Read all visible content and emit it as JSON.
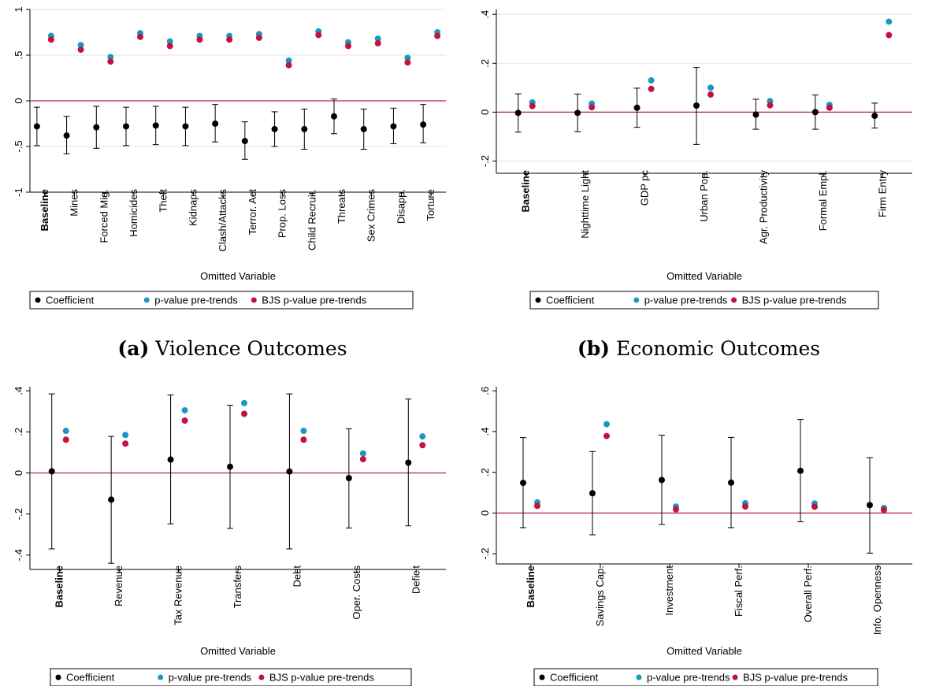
{
  "captions": [
    {
      "label": "(a)",
      "text": "Violence Outcomes"
    },
    {
      "label": "(b)",
      "text": "Economic Outcomes"
    }
  ],
  "colors": {
    "coefficient": "#000000",
    "pvalue": "#1a98c4",
    "bjs": "#c2123f",
    "zero_line": "#b3233f",
    "grid": "#e3e3e3"
  },
  "chart_data": [
    {
      "type": "scatter",
      "xlabel": "Omitted Variable",
      "ylabel": "",
      "ylim": [
        -1,
        1
      ],
      "yticks": [
        -1,
        -0.5,
        0,
        0.5,
        1
      ],
      "ytick_labels": [
        "-1",
        "-.5",
        "0",
        ".5",
        "1"
      ],
      "grid": true,
      "reference_line": 0,
      "categories": [
        "Baseline",
        "Mines",
        "Forced Mig.",
        "Homicides",
        "Theft",
        "Kidnaps",
        "Clash/Attacks",
        "Terror. Act",
        "Prop. Loss",
        "Child Recruit.",
        "Threats",
        "Sex Crimes",
        "Disapp.",
        "Torture"
      ],
      "bold_category": "Baseline",
      "coefficient": [
        -0.28,
        -0.38,
        -0.29,
        -0.28,
        -0.27,
        -0.28,
        -0.25,
        -0.44,
        -0.31,
        -0.31,
        -0.17,
        -0.31,
        -0.28,
        -0.26
      ],
      "ci_low": [
        -0.49,
        -0.58,
        -0.52,
        -0.49,
        -0.48,
        -0.49,
        -0.45,
        -0.64,
        -0.5,
        -0.53,
        -0.36,
        -0.53,
        -0.47,
        -0.46
      ],
      "ci_high": [
        -0.07,
        -0.17,
        -0.06,
        -0.07,
        -0.06,
        -0.07,
        -0.04,
        -0.23,
        -0.12,
        -0.09,
        0.02,
        -0.09,
        -0.08,
        -0.04
      ],
      "pvalue": [
        0.71,
        0.61,
        0.48,
        0.74,
        0.65,
        0.71,
        0.71,
        0.73,
        0.44,
        0.76,
        0.64,
        0.68,
        0.47,
        0.75
      ],
      "bjs_pvalue": [
        0.67,
        0.56,
        0.43,
        0.7,
        0.6,
        0.67,
        0.67,
        0.69,
        0.39,
        0.72,
        0.6,
        0.63,
        0.42,
        0.71
      ],
      "legend": [
        "Coefficient",
        "p-value pre-trends",
        "BJS p-value pre-trends"
      ],
      "legend_position": "bottom"
    },
    {
      "type": "scatter",
      "xlabel": "Omitted Variable",
      "ylabel": "",
      "ylim": [
        -0.25,
        0.42
      ],
      "yticks": [
        -0.2,
        0,
        0.2,
        0.4
      ],
      "ytick_labels": [
        "-.2",
        "0",
        ".2",
        ".4"
      ],
      "grid": true,
      "reference_line": 0,
      "categories": [
        "Baseline",
        "Nighttime Light",
        "GDP pc",
        "Urban Pop.",
        "Agr. Productivity",
        "Formal Empl.",
        "Firm Entry"
      ],
      "bold_category": "Baseline",
      "coefficient": [
        -0.003,
        -0.003,
        0.018,
        0.027,
        -0.01,
        0.0,
        -0.015
      ],
      "ci_low": [
        -0.082,
        -0.08,
        -0.062,
        -0.132,
        -0.07,
        -0.07,
        -0.065
      ],
      "ci_high": [
        0.075,
        0.074,
        0.098,
        0.183,
        0.053,
        0.07,
        0.037
      ],
      "pvalue": [
        0.04,
        0.035,
        0.13,
        0.1,
        0.045,
        0.03,
        0.37
      ],
      "bjs_pvalue": [
        0.025,
        0.02,
        0.095,
        0.072,
        0.028,
        0.018,
        0.315
      ],
      "legend": [
        "Coefficient",
        "p-value pre-trends",
        "BJS p-value pre-trends"
      ],
      "legend_position": "bottom"
    },
    {
      "type": "scatter",
      "xlabel": "Omitted Variable",
      "ylabel": "",
      "ylim": [
        -0.47,
        0.42
      ],
      "yticks": [
        -0.4,
        -0.2,
        0,
        0.2,
        0.4
      ],
      "ytick_labels": [
        "-.4",
        "-.2",
        "0",
        ".2",
        ".4"
      ],
      "grid": false,
      "reference_line": 0,
      "categories": [
        "Baseline",
        "Revenue",
        "Tax Revenue",
        "Transfers",
        "Debt",
        "Oper. Costs",
        "Deficit"
      ],
      "bold_category": "Baseline",
      "coefficient": [
        0.008,
        -0.13,
        0.065,
        0.03,
        0.007,
        -0.025,
        0.05
      ],
      "ci_low": [
        -0.37,
        -0.44,
        -0.248,
        -0.27,
        -0.37,
        -0.268,
        -0.258
      ],
      "ci_high": [
        0.385,
        0.178,
        0.38,
        0.33,
        0.385,
        0.215,
        0.36
      ],
      "pvalue": [
        0.205,
        0.185,
        0.305,
        0.34,
        0.205,
        0.095,
        0.178
      ],
      "bjs_pvalue": [
        0.162,
        0.143,
        0.255,
        0.288,
        0.162,
        0.067,
        0.135
      ],
      "legend": [
        "Coefficient",
        "p-value pre-trends",
        "BJS p-value pre-trends"
      ],
      "legend_position": "bottom"
    },
    {
      "type": "scatter",
      "xlabel": "Omitted Variable",
      "ylabel": "",
      "ylim": [
        -0.25,
        0.62
      ],
      "yticks": [
        -0.2,
        0,
        0.2,
        0.4,
        0.6
      ],
      "ytick_labels": [
        "-.2",
        "0",
        ".2",
        ".4",
        ".6"
      ],
      "grid": false,
      "reference_line": 0,
      "categories": [
        "Baseline",
        "Savings Cap.",
        "Investment",
        "Fiscal Perf.",
        "Overall Perf.",
        "Info. Openness"
      ],
      "bold_category": "Baseline",
      "coefficient": [
        0.148,
        0.097,
        0.162,
        0.149,
        0.207,
        0.039
      ],
      "ci_low": [
        -0.072,
        -0.107,
        -0.056,
        -0.072,
        -0.043,
        -0.197
      ],
      "ci_high": [
        0.37,
        0.302,
        0.382,
        0.371,
        0.459,
        0.272
      ],
      "pvalue": [
        0.052,
        0.436,
        0.032,
        0.048,
        0.047,
        0.025
      ],
      "bjs_pvalue": [
        0.035,
        0.378,
        0.018,
        0.032,
        0.031,
        0.015
      ],
      "legend": [
        "Coefficient",
        "p-value pre-trends",
        "BJS p-value pre-trends"
      ],
      "legend_position": "bottom"
    }
  ]
}
